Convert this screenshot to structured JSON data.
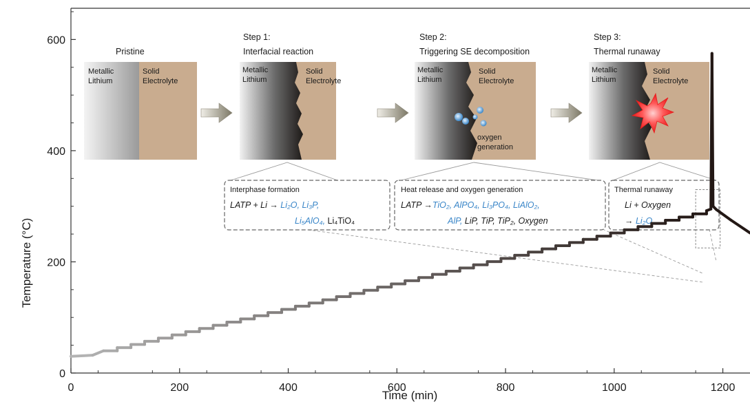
{
  "colors": {
    "text": "#1a1a1a",
    "highlight": "#3a86c8",
    "electrolyte": "#c9ac8f",
    "curve_light": "#b3b3b3",
    "curve_dark": "#231815",
    "arrow": "#8a8576",
    "flame": "#ff3b3b"
  },
  "panels": [
    {
      "title_1": "",
      "title_2": "Pristine",
      "left_1": "Metallic",
      "left_2": "Lithium",
      "right_1": "Solid",
      "right_2": "Electrolyte",
      "extra_1": "",
      "extra_2": ""
    },
    {
      "title_1": "Step 1:",
      "title_2": "Interfacial reaction",
      "left_1": "Metallic",
      "left_2": "Lithium",
      "right_1": "Solid",
      "right_2": "Electrolyte",
      "extra_1": "",
      "extra_2": ""
    },
    {
      "title_1": "Step 2:",
      "title_2": "Triggering SE decomposition",
      "left_1": "Metallic",
      "left_2": "Lithium",
      "right_1": "Solid",
      "right_2": "Electrolyte",
      "extra_1": "oxygen",
      "extra_2": "generation"
    },
    {
      "title_1": "Step 3:",
      "title_2": "Thermal runaway",
      "left_1": "Metallic",
      "left_2": "Lithium",
      "right_1": "Solid",
      "right_2": "Electrolyte",
      "extra_1": "",
      "extra_2": ""
    }
  ],
  "boxes": [
    {
      "title": "Interphase formation",
      "line1_a": "LATP + Li → ",
      "line1_b": "Li₂O, Li₃P,",
      "line2_a": "Li₅AlO₄,",
      "line2_b": " Li₄TiO₄"
    },
    {
      "title": "Heat release and oxygen generation",
      "line1_a": "LATP →",
      "line1_b": "TiO₂, AlPO₄, Li₃PO₄, LiAlO₂,",
      "line2_a": "AlP,",
      "line2_b": " LiP, TiP, TiP₂, Oxygen"
    },
    {
      "title": "Thermal runaway",
      "line1_a": "Li + Oxygen",
      "line1_b": "",
      "line2_a": "→ ",
      "line2_b": "Li₂O"
    }
  ],
  "chart_data": {
    "type": "line",
    "xlabel": "Time (min)",
    "ylabel": "Temperature (°C)",
    "xlim": [
      0,
      1250
    ],
    "ylim": [
      0,
      650
    ],
    "xticks": [
      "0",
      "200",
      "400",
      "600",
      "800",
      "1000",
      "1200"
    ],
    "yticks": [
      "0",
      "200",
      "400",
      "600"
    ],
    "xtick_values": [
      0,
      200,
      400,
      600,
      800,
      1000,
      1200
    ],
    "ytick_values": [
      0,
      200,
      400,
      600
    ],
    "series": [
      {
        "name": "",
        "x": [
          0,
          40,
          60,
          1170,
          1178,
          1180,
          1182,
          1188,
          1215,
          1250
        ],
        "y": [
          30,
          32,
          40,
          292,
          295,
          575,
          300,
          294,
          275,
          252
        ]
      }
    ],
    "zoom_region": {
      "x": [
        1150,
        1195
      ],
      "y": [
        225,
        330
      ]
    }
  }
}
